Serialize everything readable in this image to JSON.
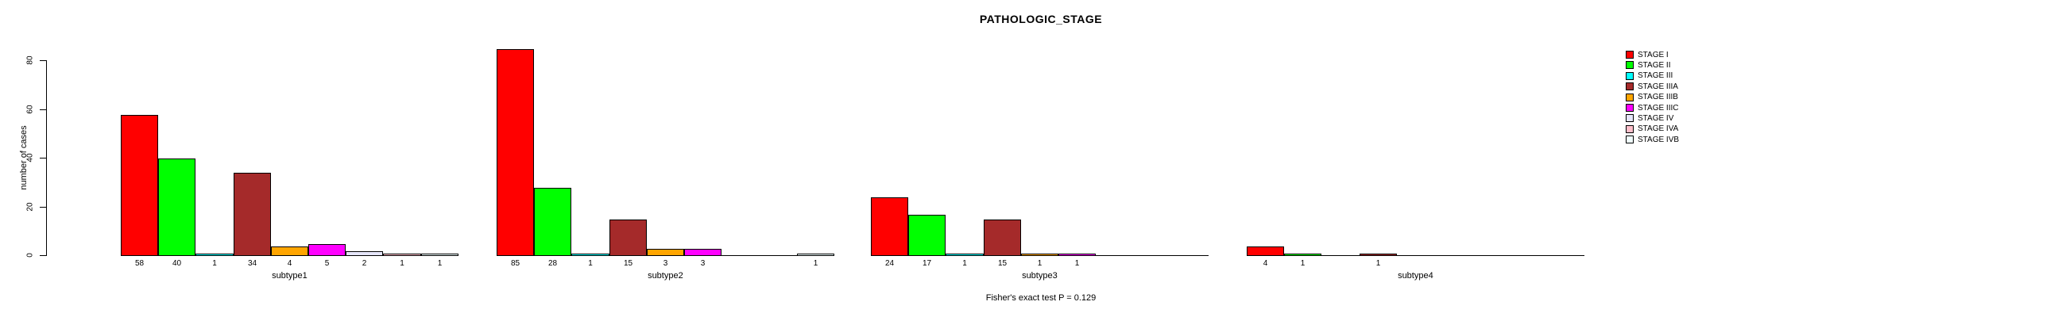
{
  "title": "PATHOLOGIC_STAGE",
  "footer_note": "Fisher's exact test P = 0.129",
  "y_axis_label": "number of cases",
  "chart_data": {
    "type": "bar",
    "title": "PATHOLOGIC_STAGE",
    "xlabel": "",
    "ylabel": "number of cases",
    "ylim": [
      0,
      85
    ],
    "yticks": [
      0,
      20,
      40,
      60,
      80
    ],
    "grid": false,
    "legend_position": "right",
    "bar_value_labels_shown": true,
    "annotation": "Fisher's exact test P = 0.129",
    "categories": [
      "subtype1",
      "subtype2",
      "subtype3",
      "subtype4"
    ],
    "series": [
      {
        "name": "STAGE I",
        "color": "#FF0000",
        "values": [
          58,
          85,
          24,
          4
        ]
      },
      {
        "name": "STAGE II",
        "color": "#00FF00",
        "values": [
          40,
          28,
          17,
          1
        ]
      },
      {
        "name": "STAGE III",
        "color": "#00FFFF",
        "values": [
          1,
          1,
          1,
          0
        ]
      },
      {
        "name": "STAGE IIIA",
        "color": "#A52A2A",
        "values": [
          34,
          15,
          15,
          1
        ]
      },
      {
        "name": "STAGE IIIB",
        "color": "#FFA500",
        "values": [
          4,
          3,
          1,
          0
        ]
      },
      {
        "name": "STAGE IIIC",
        "color": "#FF00FF",
        "values": [
          5,
          3,
          1,
          0
        ]
      },
      {
        "name": "STAGE IV",
        "color": "#E6E6FA",
        "values": [
          2,
          0,
          0,
          0
        ]
      },
      {
        "name": "STAGE IVA",
        "color": "#FFC0CB",
        "values": [
          1,
          0,
          0,
          0
        ]
      },
      {
        "name": "STAGE IVB",
        "color": "#F0FFFF",
        "values": [
          1,
          1,
          0,
          0
        ]
      }
    ]
  }
}
